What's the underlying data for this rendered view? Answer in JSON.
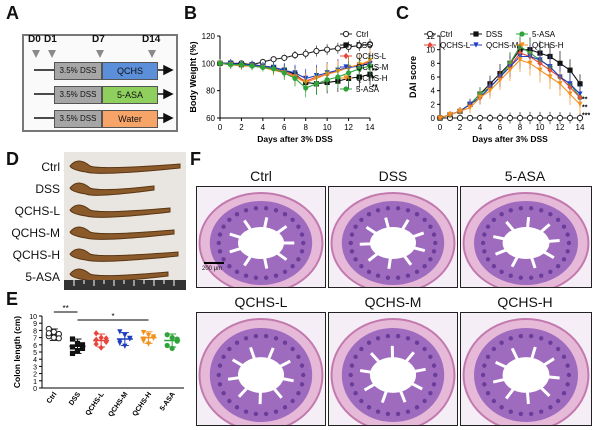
{
  "panels": {
    "A": {
      "label": "A",
      "days": [
        "D0",
        "D1",
        "D7",
        "D14"
      ],
      "rows": [
        {
          "left": "3.5% DSS",
          "right": "QCHS",
          "color": "#5b8fd9"
        },
        {
          "left": "3.5% DSS",
          "right": "5-ASA",
          "color": "#8fcf5e"
        },
        {
          "left": "3.5% DSS",
          "right": "Water",
          "color": "#f7a468"
        }
      ]
    },
    "B": {
      "label": "B"
    },
    "C": {
      "label": "C"
    },
    "D": {
      "label": "D",
      "groups": [
        "Ctrl",
        "DSS",
        "QCHS-L",
        "QCHS-M",
        "QCHS-H",
        "5-ASA"
      ]
    },
    "E": {
      "label": "E"
    },
    "F": {
      "label": "F",
      "titles": [
        "Ctrl",
        "DSS",
        "5-ASA",
        "QCHS-L",
        "QCHS-M",
        "QCHS-H"
      ],
      "scale": "200 μm"
    }
  },
  "chart_data": [
    {
      "id": "B",
      "type": "line",
      "ylabel": "Body Weight (%)",
      "xlabel": "Days after 3% DSS",
      "x": [
        0,
        1,
        2,
        3,
        4,
        5,
        6,
        7,
        8,
        9,
        10,
        11,
        12,
        13,
        14
      ],
      "xticks": [
        0,
        2,
        4,
        6,
        8,
        10,
        12,
        14
      ],
      "yticks": [
        60,
        80,
        100,
        120
      ],
      "ylim": [
        60,
        120
      ],
      "xlim": [
        0,
        14
      ],
      "legend": [
        "Ctrl",
        "DSS",
        "QCHS-L",
        "QCHS-M",
        "QCHS-H",
        "5-ASA"
      ],
      "series": [
        {
          "name": "Ctrl",
          "color": "#222222",
          "marker": "circle-open",
          "values": [
            100,
            100,
            100,
            99,
            101,
            103,
            104,
            106,
            107,
            109,
            110,
            111,
            112,
            113,
            114
          ]
        },
        {
          "name": "DSS",
          "color": "#111111",
          "marker": "square",
          "values": [
            100,
            100,
            99,
            99,
            98,
            97,
            95,
            92,
            86,
            85,
            86,
            87,
            89,
            90,
            92
          ]
        },
        {
          "name": "QCHS-L",
          "color": "#e8443a",
          "marker": "diamond",
          "values": [
            100,
            99,
            99,
            98,
            98,
            96,
            94,
            91,
            87,
            90,
            92,
            95,
            97,
            99,
            101
          ]
        },
        {
          "name": "QCHS-M",
          "color": "#1f3fbf",
          "marker": "triangle-down",
          "values": [
            100,
            100,
            99,
            99,
            98,
            97,
            95,
            93,
            89,
            91,
            93,
            95,
            97,
            98,
            100
          ]
        },
        {
          "name": "QCHS-H",
          "color": "#f4911e",
          "marker": "triangle-down",
          "values": [
            100,
            99,
            98,
            98,
            97,
            95,
            93,
            90,
            86,
            89,
            92,
            94,
            97,
            99,
            102
          ]
        },
        {
          "name": "5-ASA",
          "color": "#2ea43a",
          "marker": "circle",
          "values": [
            100,
            99,
            99,
            98,
            97,
            96,
            93,
            89,
            82,
            85,
            88,
            90,
            93,
            96,
            98
          ]
        }
      ],
      "errors": [
        3,
        3,
        3,
        3,
        3,
        4,
        5,
        6,
        7,
        8,
        8,
        8,
        8,
        8,
        8
      ],
      "annotations": [
        "**",
        "*",
        "**"
      ]
    },
    {
      "id": "C",
      "type": "line",
      "ylabel": "DAI score",
      "xlabel": "Days after 3% DSS",
      "x": [
        0,
        1,
        2,
        3,
        4,
        5,
        6,
        7,
        8,
        9,
        10,
        11,
        12,
        13,
        14
      ],
      "xticks": [
        0,
        2,
        4,
        6,
        8,
        10,
        12,
        14
      ],
      "yticks": [
        0,
        2,
        4,
        6,
        8,
        10,
        12
      ],
      "ylim": [
        0,
        12
      ],
      "xlim": [
        0,
        14
      ],
      "legend": [
        "Ctrl",
        "DSS",
        "5-ASA",
        "QCHS-L",
        "QCHS-M",
        "QCHS-H"
      ],
      "series": [
        {
          "name": "Ctrl",
          "color": "#222222",
          "marker": "circle-open",
          "values": [
            0,
            0,
            0,
            0,
            0,
            0,
            0,
            0,
            0,
            0,
            0,
            0,
            0,
            0,
            0
          ]
        },
        {
          "name": "DSS",
          "color": "#111111",
          "marker": "square",
          "values": [
            0,
            0.5,
            1,
            2,
            3.5,
            5,
            6.5,
            8,
            10,
            10,
            9.5,
            9,
            8,
            7,
            5
          ]
        },
        {
          "name": "5-ASA",
          "color": "#2ea43a",
          "marker": "circle",
          "values": [
            0,
            0.5,
            1,
            2,
            3.5,
            4.5,
            6,
            8,
            10.5,
            9.5,
            8.5,
            7.5,
            6,
            5,
            3
          ]
        },
        {
          "name": "QCHS-L",
          "color": "#e8443a",
          "marker": "diamond",
          "values": [
            0,
            0.5,
            1,
            2,
            3,
            4.5,
            6,
            7.5,
            9.5,
            9,
            8,
            7,
            6,
            4.5,
            3
          ]
        },
        {
          "name": "QCHS-M",
          "color": "#1f3fbf",
          "marker": "triangle-down",
          "values": [
            0,
            0.5,
            1,
            2,
            3,
            4.5,
            6,
            7.5,
            9,
            9,
            8.5,
            7.5,
            6,
            5,
            3.5
          ]
        },
        {
          "name": "QCHS-H",
          "color": "#f4911e",
          "marker": "triangle-down",
          "values": [
            0,
            0.5,
            1,
            1.5,
            3,
            4,
            5.5,
            7,
            8.5,
            8,
            7,
            6,
            5,
            3.5,
            2
          ]
        }
      ],
      "errors": [
        0,
        0.5,
        0.6,
        0.8,
        1,
        1.2,
        1.4,
        1.6,
        1.8,
        1.8,
        1.8,
        1.8,
        1.8,
        1.6,
        1.4
      ],
      "annotations": [
        "**",
        "**",
        "***"
      ]
    },
    {
      "id": "E",
      "type": "bar",
      "ylabel": "Colon length (cm)",
      "categories": [
        "Ctrl",
        "DSS",
        "QCHS-L",
        "QCHS-M",
        "QCHS-H",
        "5-ASA"
      ],
      "values": [
        7.4,
        5.8,
        6.6,
        6.8,
        7.0,
        6.6
      ],
      "errors": [
        0.8,
        1.0,
        0.9,
        0.9,
        0.8,
        0.9
      ],
      "colors": [
        "#222222",
        "#111111",
        "#e8443a",
        "#1f3fbf",
        "#f4911e",
        "#2ea43a"
      ],
      "yticks": [
        0,
        1,
        2,
        3,
        4,
        5,
        6,
        7,
        8,
        9,
        10
      ],
      "ylim": [
        0,
        10
      ],
      "points": [
        [
          8.2,
          7.8,
          7.5,
          7.2,
          7.0,
          6.9,
          7.6
        ],
        [
          6.8,
          6.2,
          5.5,
          4.8,
          5.2,
          6.0,
          5.7
        ],
        [
          7.6,
          7.0,
          6.4,
          6.1,
          5.6,
          6.9,
          6.7
        ],
        [
          7.8,
          7.3,
          6.9,
          6.5,
          5.8,
          6.8,
          6.2
        ],
        [
          7.7,
          7.3,
          6.9,
          6.5,
          6.1,
          7.1,
          6.8
        ],
        [
          7.4,
          7.0,
          6.5,
          5.9,
          5.5,
          6.8
        ]
      ],
      "significance": [
        {
          "from": 0,
          "to": 1,
          "label": "**"
        },
        {
          "from": 1,
          "to": 4,
          "label": "*"
        }
      ]
    }
  ]
}
